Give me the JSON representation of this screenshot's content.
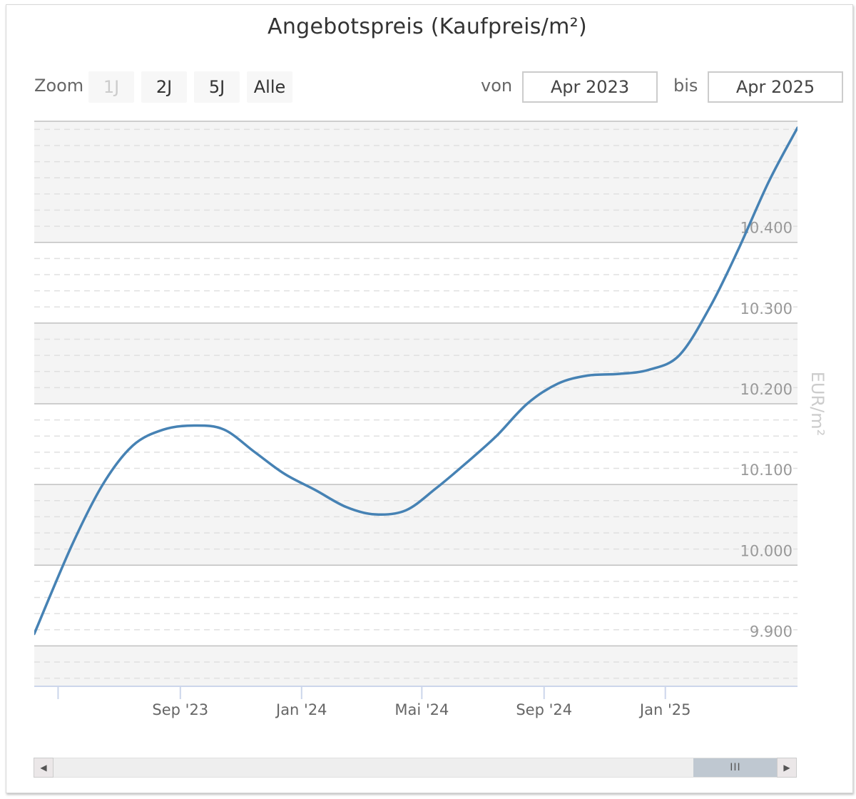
{
  "header": {
    "title": "Angebotspreis (Kaufpreis/m²)"
  },
  "zoom": {
    "label": "Zoom",
    "buttons": [
      {
        "label": "1J",
        "disabled": true
      },
      {
        "label": "2J",
        "disabled": false
      },
      {
        "label": "5J",
        "disabled": false
      },
      {
        "label": "Alle",
        "disabled": false
      }
    ]
  },
  "range": {
    "from_label": "von",
    "from_value": "Apr 2023",
    "to_label": "bis",
    "to_value": "Apr 2025"
  },
  "scrollbar": {
    "thumb_glyph": "III",
    "left_arrow": "◀",
    "right_arrow": "▶"
  },
  "colors": {
    "line": "#4682b4",
    "band": "#f4f4f4",
    "grid_major": "#c0c0c0",
    "grid_minor": "#e0e0e0"
  },
  "chart_data": {
    "type": "line",
    "title": "Angebotspreis (Kaufpreis/m²)",
    "ylabel": "EUR/m²",
    "ylim": [
      9850,
      10550
    ],
    "y_ticks": [
      {
        "value": 9900,
        "label": "9.900"
      },
      {
        "value": 10000,
        "label": "10.000"
      },
      {
        "value": 10100,
        "label": "10.100"
      },
      {
        "value": 10200,
        "label": "10.200"
      },
      {
        "value": 10300,
        "label": "10.300"
      },
      {
        "value": 10400,
        "label": "10.400"
      }
    ],
    "xlim": [
      "2023-04-07",
      "2025-05-14"
    ],
    "x_ticks": [
      {
        "date": "2023-05-01",
        "label": ""
      },
      {
        "date": "2023-09-01",
        "label": "Sep '23"
      },
      {
        "date": "2024-01-01",
        "label": "Jan '24"
      },
      {
        "date": "2024-05-01",
        "label": "Mai '24"
      },
      {
        "date": "2024-09-01",
        "label": "Sep '24"
      },
      {
        "date": "2025-01-01",
        "label": "Jan '25"
      }
    ],
    "grid": true,
    "series": [
      {
        "values": [
          {
            "x": "2023-04-07",
            "y": 9915
          },
          {
            "x": "2023-05-15",
            "y": 10025
          },
          {
            "x": "2023-06-15",
            "y": 10100
          },
          {
            "x": "2023-07-15",
            "y": 10148
          },
          {
            "x": "2023-08-15",
            "y": 10168
          },
          {
            "x": "2023-09-15",
            "y": 10173
          },
          {
            "x": "2023-10-15",
            "y": 10168
          },
          {
            "x": "2023-11-15",
            "y": 10140
          },
          {
            "x": "2023-12-15",
            "y": 10113
          },
          {
            "x": "2024-01-15",
            "y": 10093
          },
          {
            "x": "2024-02-15",
            "y": 10072
          },
          {
            "x": "2024-03-15",
            "y": 10063
          },
          {
            "x": "2024-04-15",
            "y": 10068
          },
          {
            "x": "2024-05-15",
            "y": 10095
          },
          {
            "x": "2024-06-15",
            "y": 10127
          },
          {
            "x": "2024-07-15",
            "y": 10160
          },
          {
            "x": "2024-08-15",
            "y": 10200
          },
          {
            "x": "2024-09-15",
            "y": 10225
          },
          {
            "x": "2024-10-15",
            "y": 10235
          },
          {
            "x": "2024-11-15",
            "y": 10237
          },
          {
            "x": "2024-12-15",
            "y": 10242
          },
          {
            "x": "2025-01-15",
            "y": 10260
          },
          {
            "x": "2025-02-15",
            "y": 10320
          },
          {
            "x": "2025-03-15",
            "y": 10390
          },
          {
            "x": "2025-04-15",
            "y": 10475
          },
          {
            "x": "2025-05-14",
            "y": 10542
          }
        ]
      }
    ]
  }
}
